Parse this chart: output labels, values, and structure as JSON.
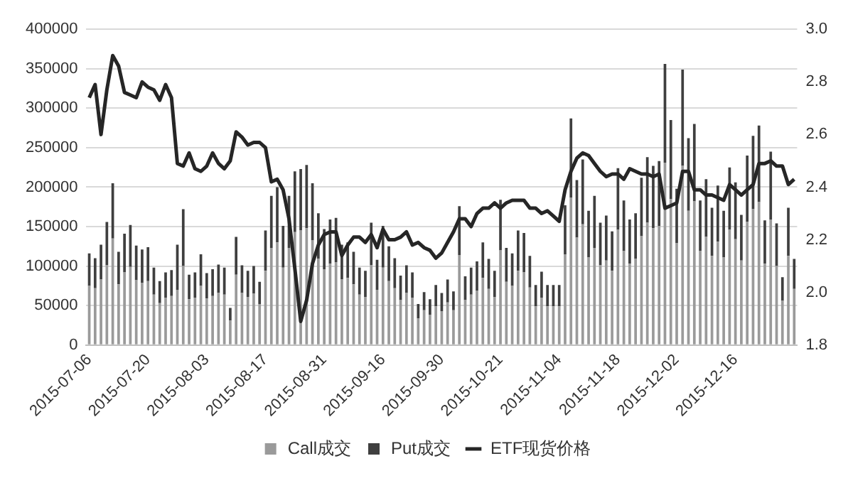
{
  "chart_data": {
    "type": "bar",
    "stacked": true,
    "grid": "y",
    "legend": "bottom",
    "categories": [
      "2015-07-06",
      null,
      null,
      null,
      null,
      null,
      null,
      null,
      null,
      null,
      "2015-07-20",
      null,
      null,
      null,
      null,
      null,
      null,
      null,
      null,
      null,
      "2015-08-03",
      null,
      null,
      null,
      null,
      null,
      null,
      null,
      null,
      null,
      "2015-08-17",
      null,
      null,
      null,
      null,
      null,
      null,
      null,
      null,
      null,
      "2015-08-31",
      null,
      null,
      null,
      null,
      null,
      null,
      null,
      null,
      null,
      "2015-09-16",
      null,
      null,
      null,
      null,
      null,
      null,
      null,
      null,
      null,
      "2015-09-30",
      null,
      null,
      null,
      null,
      null,
      null,
      null,
      null,
      null,
      "2015-10-21",
      null,
      null,
      null,
      null,
      null,
      null,
      null,
      null,
      null,
      "2015-11-04",
      null,
      null,
      null,
      null,
      null,
      null,
      null,
      null,
      null,
      "2015-11-18",
      null,
      null,
      null,
      null,
      null,
      null,
      null,
      null,
      null,
      "2015-12-02",
      null,
      null,
      null,
      null,
      null,
      null,
      null,
      null,
      null,
      "2015-12-16",
      null,
      null,
      null,
      null,
      null,
      null,
      null,
      null,
      null,
      null
    ],
    "ylim": [
      0,
      400000
    ],
    "yticks": [
      0,
      50000,
      100000,
      150000,
      200000,
      250000,
      300000,
      350000,
      400000
    ],
    "y2lim": [
      1.8,
      3.0
    ],
    "y2ticks": [
      {
        "value": 1.8,
        "label": "1.8"
      },
      {
        "value": 2.0,
        "label": "2.0"
      },
      2.2,
      2.4,
      2.6,
      2.8,
      {
        "value": 3.0,
        "label": "3.0"
      }
    ],
    "series": [
      {
        "name": "Call成交",
        "color": "#9a9a9a",
        "values": [
          75000,
          72000,
          83000,
          101000,
          135000,
          77000,
          92000,
          99000,
          82000,
          79000,
          81000,
          64000,
          53000,
          60000,
          62000,
          70000,
          100000,
          58000,
          60000,
          75000,
          59000,
          62000,
          66000,
          64000,
          31000,
          89000,
          66000,
          61000,
          65000,
          52000,
          94000,
          123000,
          130000,
          98000,
          123000,
          143000,
          145000,
          148000,
          133000,
          109000,
          96000,
          103000,
          105000,
          83000,
          85000,
          77000,
          64000,
          61000,
          101000,
          70000,
          98000,
          81000,
          72000,
          57000,
          66000,
          60000,
          34000,
          44000,
          38000,
          49000,
          43000,
          54000,
          44000,
          114000,
          57000,
          64000,
          69000,
          85000,
          71000,
          61000,
          120000,
          80000,
          75000,
          94000,
          92000,
          73000,
          49000,
          60000,
          49000,
          49000,
          49000,
          115000,
          187000,
          136000,
          153000,
          111000,
          123000,
          101000,
          107000,
          94000,
          146000,
          119000,
          103000,
          109000,
          138000,
          155000,
          148000,
          151000,
          231000,
          185000,
          129000,
          227000,
          170000,
          182000,
          119000,
          137000,
          113000,
          131000,
          111000,
          146000,
          134000,
          107000,
          156000,
          172000,
          181000,
          103000,
          159000,
          100000,
          56000,
          113000,
          71000
        ]
      },
      {
        "name": "Put成交",
        "color": "#3f3f3f",
        "values": [
          41000,
          38000,
          44000,
          55000,
          70000,
          41000,
          49000,
          53000,
          44000,
          42000,
          43000,
          34000,
          28000,
          32000,
          33000,
          57000,
          72000,
          31000,
          32000,
          40000,
          32000,
          34000,
          36000,
          34000,
          16000,
          48000,
          35000,
          33000,
          35000,
          28000,
          51000,
          66000,
          70000,
          53000,
          66000,
          77000,
          78000,
          80000,
          72000,
          58000,
          51000,
          56000,
          56000,
          44000,
          45000,
          41000,
          34000,
          33000,
          54000,
          38000,
          53000,
          44000,
          38000,
          31000,
          35000,
          32000,
          18000,
          23000,
          20000,
          27000,
          23000,
          29000,
          24000,
          62000,
          30000,
          34000,
          37000,
          45000,
          38000,
          33000,
          64000,
          43000,
          41000,
          51000,
          50000,
          40000,
          27000,
          33000,
          27000,
          27000,
          27000,
          62000,
          100000,
          73000,
          82000,
          59000,
          66000,
          54000,
          57000,
          50000,
          78000,
          64000,
          56000,
          58000,
          74000,
          83000,
          79000,
          82000,
          125000,
          100000,
          69000,
          122000,
          92000,
          98000,
          64000,
          73000,
          61000,
          71000,
          59000,
          79000,
          72000,
          58000,
          84000,
          93000,
          97000,
          55000,
          86000,
          54000,
          30000,
          61000,
          38000
        ]
      },
      {
        "name": "ETF现货价格",
        "type": "line",
        "axis": "y2",
        "color": "#262626",
        "values": [
          2.74,
          2.79,
          2.6,
          2.77,
          2.9,
          2.86,
          2.76,
          2.75,
          2.74,
          2.8,
          2.78,
          2.77,
          2.73,
          2.79,
          2.74,
          2.49,
          2.48,
          2.53,
          2.47,
          2.46,
          2.48,
          2.53,
          2.49,
          2.47,
          2.5,
          2.61,
          2.59,
          2.56,
          2.57,
          2.57,
          2.55,
          2.42,
          2.43,
          2.39,
          2.28,
          2.09,
          1.89,
          1.97,
          2.11,
          2.18,
          2.22,
          2.23,
          2.23,
          2.14,
          2.18,
          2.21,
          2.21,
          2.19,
          2.22,
          2.17,
          2.24,
          2.2,
          2.2,
          2.21,
          2.23,
          2.18,
          2.19,
          2.17,
          2.16,
          2.13,
          2.15,
          2.19,
          2.23,
          2.28,
          2.28,
          2.25,
          2.3,
          2.32,
          2.32,
          2.34,
          2.32,
          2.34,
          2.35,
          2.35,
          2.35,
          2.32,
          2.32,
          2.3,
          2.31,
          2.29,
          2.27,
          2.39,
          2.46,
          2.51,
          2.53,
          2.52,
          2.49,
          2.46,
          2.44,
          2.45,
          2.45,
          2.43,
          2.47,
          2.46,
          2.45,
          2.45,
          2.44,
          2.45,
          2.32,
          2.33,
          2.34,
          2.46,
          2.46,
          2.39,
          2.39,
          2.37,
          2.37,
          2.36,
          2.35,
          2.41,
          2.39,
          2.37,
          2.39,
          2.41,
          2.49,
          2.49,
          2.5,
          2.48,
          2.48,
          2.41,
          2.43
        ]
      }
    ]
  }
}
